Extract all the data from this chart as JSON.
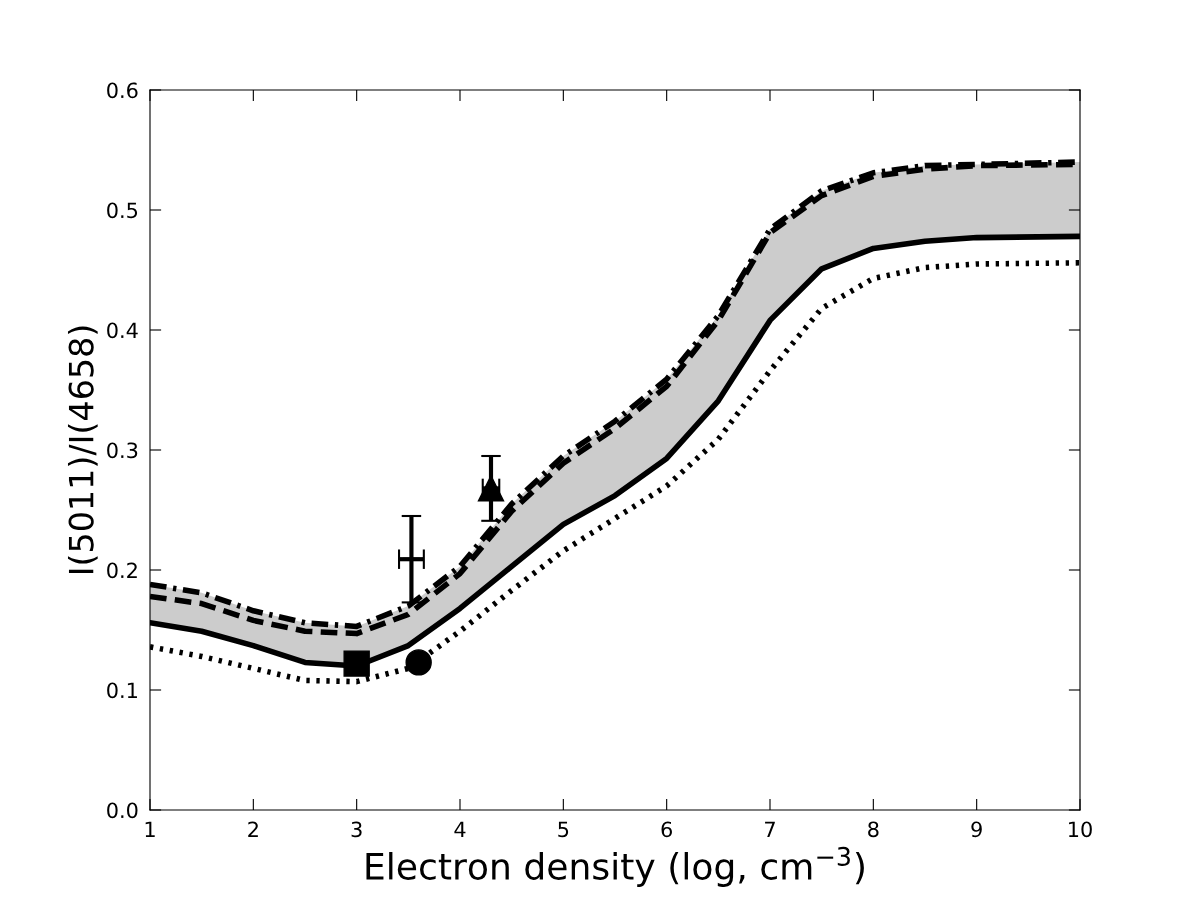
{
  "chart_data": {
    "type": "line",
    "xlabel": "Electron density (log, cm$^{−3}$)",
    "ylabel": "I(5011)/I(4658)",
    "xlim": [
      1,
      10
    ],
    "ylim": [
      0,
      0.6
    ],
    "xticks": [
      1,
      2,
      3,
      4,
      5,
      6,
      7,
      8,
      9,
      10
    ],
    "yticks": [
      {
        "value": 0,
        "label": "0.0"
      },
      {
        "value": 0.1,
        "label": "0.1"
      },
      {
        "value": 0.2,
        "label": "0.2"
      },
      {
        "value": 0.3,
        "label": "0.3"
      },
      {
        "value": 0.4,
        "label": "0.4"
      },
      {
        "value": 0.5,
        "label": "0.5"
      },
      {
        "value": 0.6,
        "label": "0.6"
      }
    ],
    "grid": false,
    "series": [
      {
        "type": "line",
        "color": "#000000",
        "line_style": "dashed",
        "marker": "none",
        "x": [
          1,
          1.5,
          2,
          2.5,
          3,
          3.5,
          4,
          4.5,
          5,
          5.5,
          6,
          6.5,
          7,
          7.5,
          8,
          8.5,
          9,
          10
        ],
        "values": [
          0.178,
          0.172,
          0.158,
          0.149,
          0.147,
          0.163,
          0.197,
          0.249,
          0.289,
          0.318,
          0.353,
          0.408,
          0.481,
          0.512,
          0.528,
          0.534,
          0.537,
          0.538
        ],
        "lower": [
          0.156,
          0.149,
          0.137,
          0.123,
          0.12,
          0.137,
          0.168,
          0.203,
          0.238,
          0.262,
          0.293,
          0.341,
          0.408,
          0.451,
          0.468,
          0.474,
          0.477,
          0.478
        ],
        "upper": [
          0.188,
          0.181,
          0.166,
          0.156,
          0.153,
          0.17,
          0.203,
          0.255,
          0.295,
          0.324,
          0.359,
          0.412,
          0.484,
          0.516,
          0.531,
          0.537,
          0.538,
          0.54
        ]
      },
      {
        "type": "line",
        "color": "#000000",
        "line_style": "solid",
        "marker": "none",
        "x": [
          1,
          1.5,
          2,
          2.5,
          3,
          3.5,
          4,
          4.5,
          5,
          5.5,
          6,
          6.5,
          7,
          7.5,
          8,
          8.5,
          9,
          10
        ],
        "values": [
          0.156,
          0.149,
          0.137,
          0.123,
          0.12,
          0.137,
          0.168,
          0.203,
          0.238,
          0.262,
          0.293,
          0.341,
          0.408,
          0.451,
          0.468,
          0.474,
          0.477,
          0.478
        ]
      },
      {
        "type": "line",
        "color": "#000000",
        "line_style": "dotted",
        "marker": "none",
        "x": [
          1,
          1.5,
          2,
          2.5,
          3,
          3.5,
          4,
          4.5,
          5,
          5.5,
          6,
          6.5,
          7,
          7.5,
          8,
          8.5,
          9,
          10
        ],
        "values": [
          0.136,
          0.128,
          0.118,
          0.108,
          0.107,
          0.118,
          0.149,
          0.183,
          0.216,
          0.243,
          0.27,
          0.309,
          0.366,
          0.418,
          0.443,
          0.452,
          0.455,
          0.456
        ]
      },
      {
        "type": "line",
        "color": "#000000",
        "line_style": "dashdot",
        "marker": "none",
        "x": [
          1,
          1.5,
          2,
          2.5,
          3,
          3.5,
          4,
          4.5,
          5,
          5.5,
          6,
          6.5,
          7,
          7.5,
          8,
          8.5,
          9,
          10
        ],
        "values": [
          0.188,
          0.181,
          0.166,
          0.156,
          0.153,
          0.17,
          0.203,
          0.255,
          0.295,
          0.324,
          0.359,
          0.412,
          0.484,
          0.516,
          0.531,
          0.537,
          0.538,
          0.54
        ]
      },
      {
        "type": "scatter",
        "color": "#000000",
        "marker": "square",
        "x": [
          3.0
        ],
        "values": [
          0.122
        ]
      },
      {
        "type": "scatter",
        "color": "#000000",
        "marker": "circle",
        "x": [
          3.6
        ],
        "values": [
          0.123
        ]
      },
      {
        "type": "scatter",
        "color": "#000000",
        "marker": "cross",
        "x": [
          3.53
        ],
        "values": [
          0.209
        ],
        "errors": [
          0.036
        ],
        "xerrors": [
          0.12
        ]
      },
      {
        "type": "scatter",
        "color": "#000000",
        "marker": "triangle",
        "x": [
          4.3
        ],
        "values": [
          0.268
        ],
        "errors": [
          0.027
        ],
        "xerrors": [
          0.08
        ]
      }
    ]
  }
}
